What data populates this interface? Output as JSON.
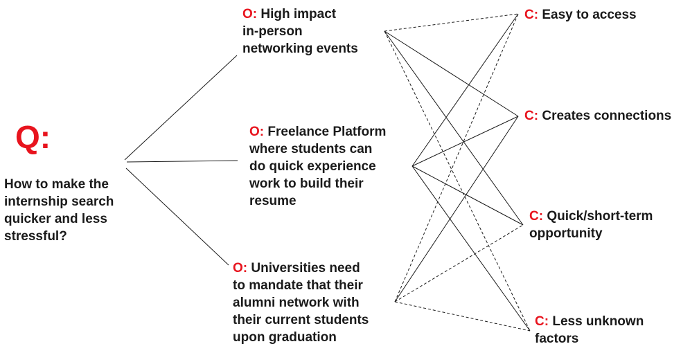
{
  "question": {
    "prefix": "Q:",
    "text": "How to make the\ninternship search\nquicker and less\nstressful?"
  },
  "options": [
    {
      "prefix": "O:",
      "text": " High impact\nin-person\nnetworking events"
    },
    {
      "prefix": "O:",
      "text": " Freelance Platform\nwhere students can\ndo quick experience\nwork to build their\nresume"
    },
    {
      "prefix": "O:",
      "text": " Universities need\nto mandate that their\nalumni network with\ntheir current students\nupon graduation"
    }
  ],
  "criteria": [
    {
      "prefix": "C:",
      "text": " Easy to access"
    },
    {
      "prefix": "C:",
      "text": " Creates connections"
    },
    {
      "prefix": "C:",
      "text": " Quick/short-term\nopportunity"
    },
    {
      "prefix": "C:",
      "text": " Less unknown\nfactors"
    }
  ],
  "links": {
    "option_1": [
      "dashed",
      "solid",
      "solid",
      "dashed"
    ],
    "option_2": [
      "solid",
      "solid",
      "solid",
      "solid"
    ],
    "option_3": [
      "dashed",
      "solid",
      "dashed",
      "dashed"
    ]
  },
  "colors": {
    "accent": "#e8141e",
    "text": "#1a1a1a",
    "line": "#1a1a1a"
  }
}
